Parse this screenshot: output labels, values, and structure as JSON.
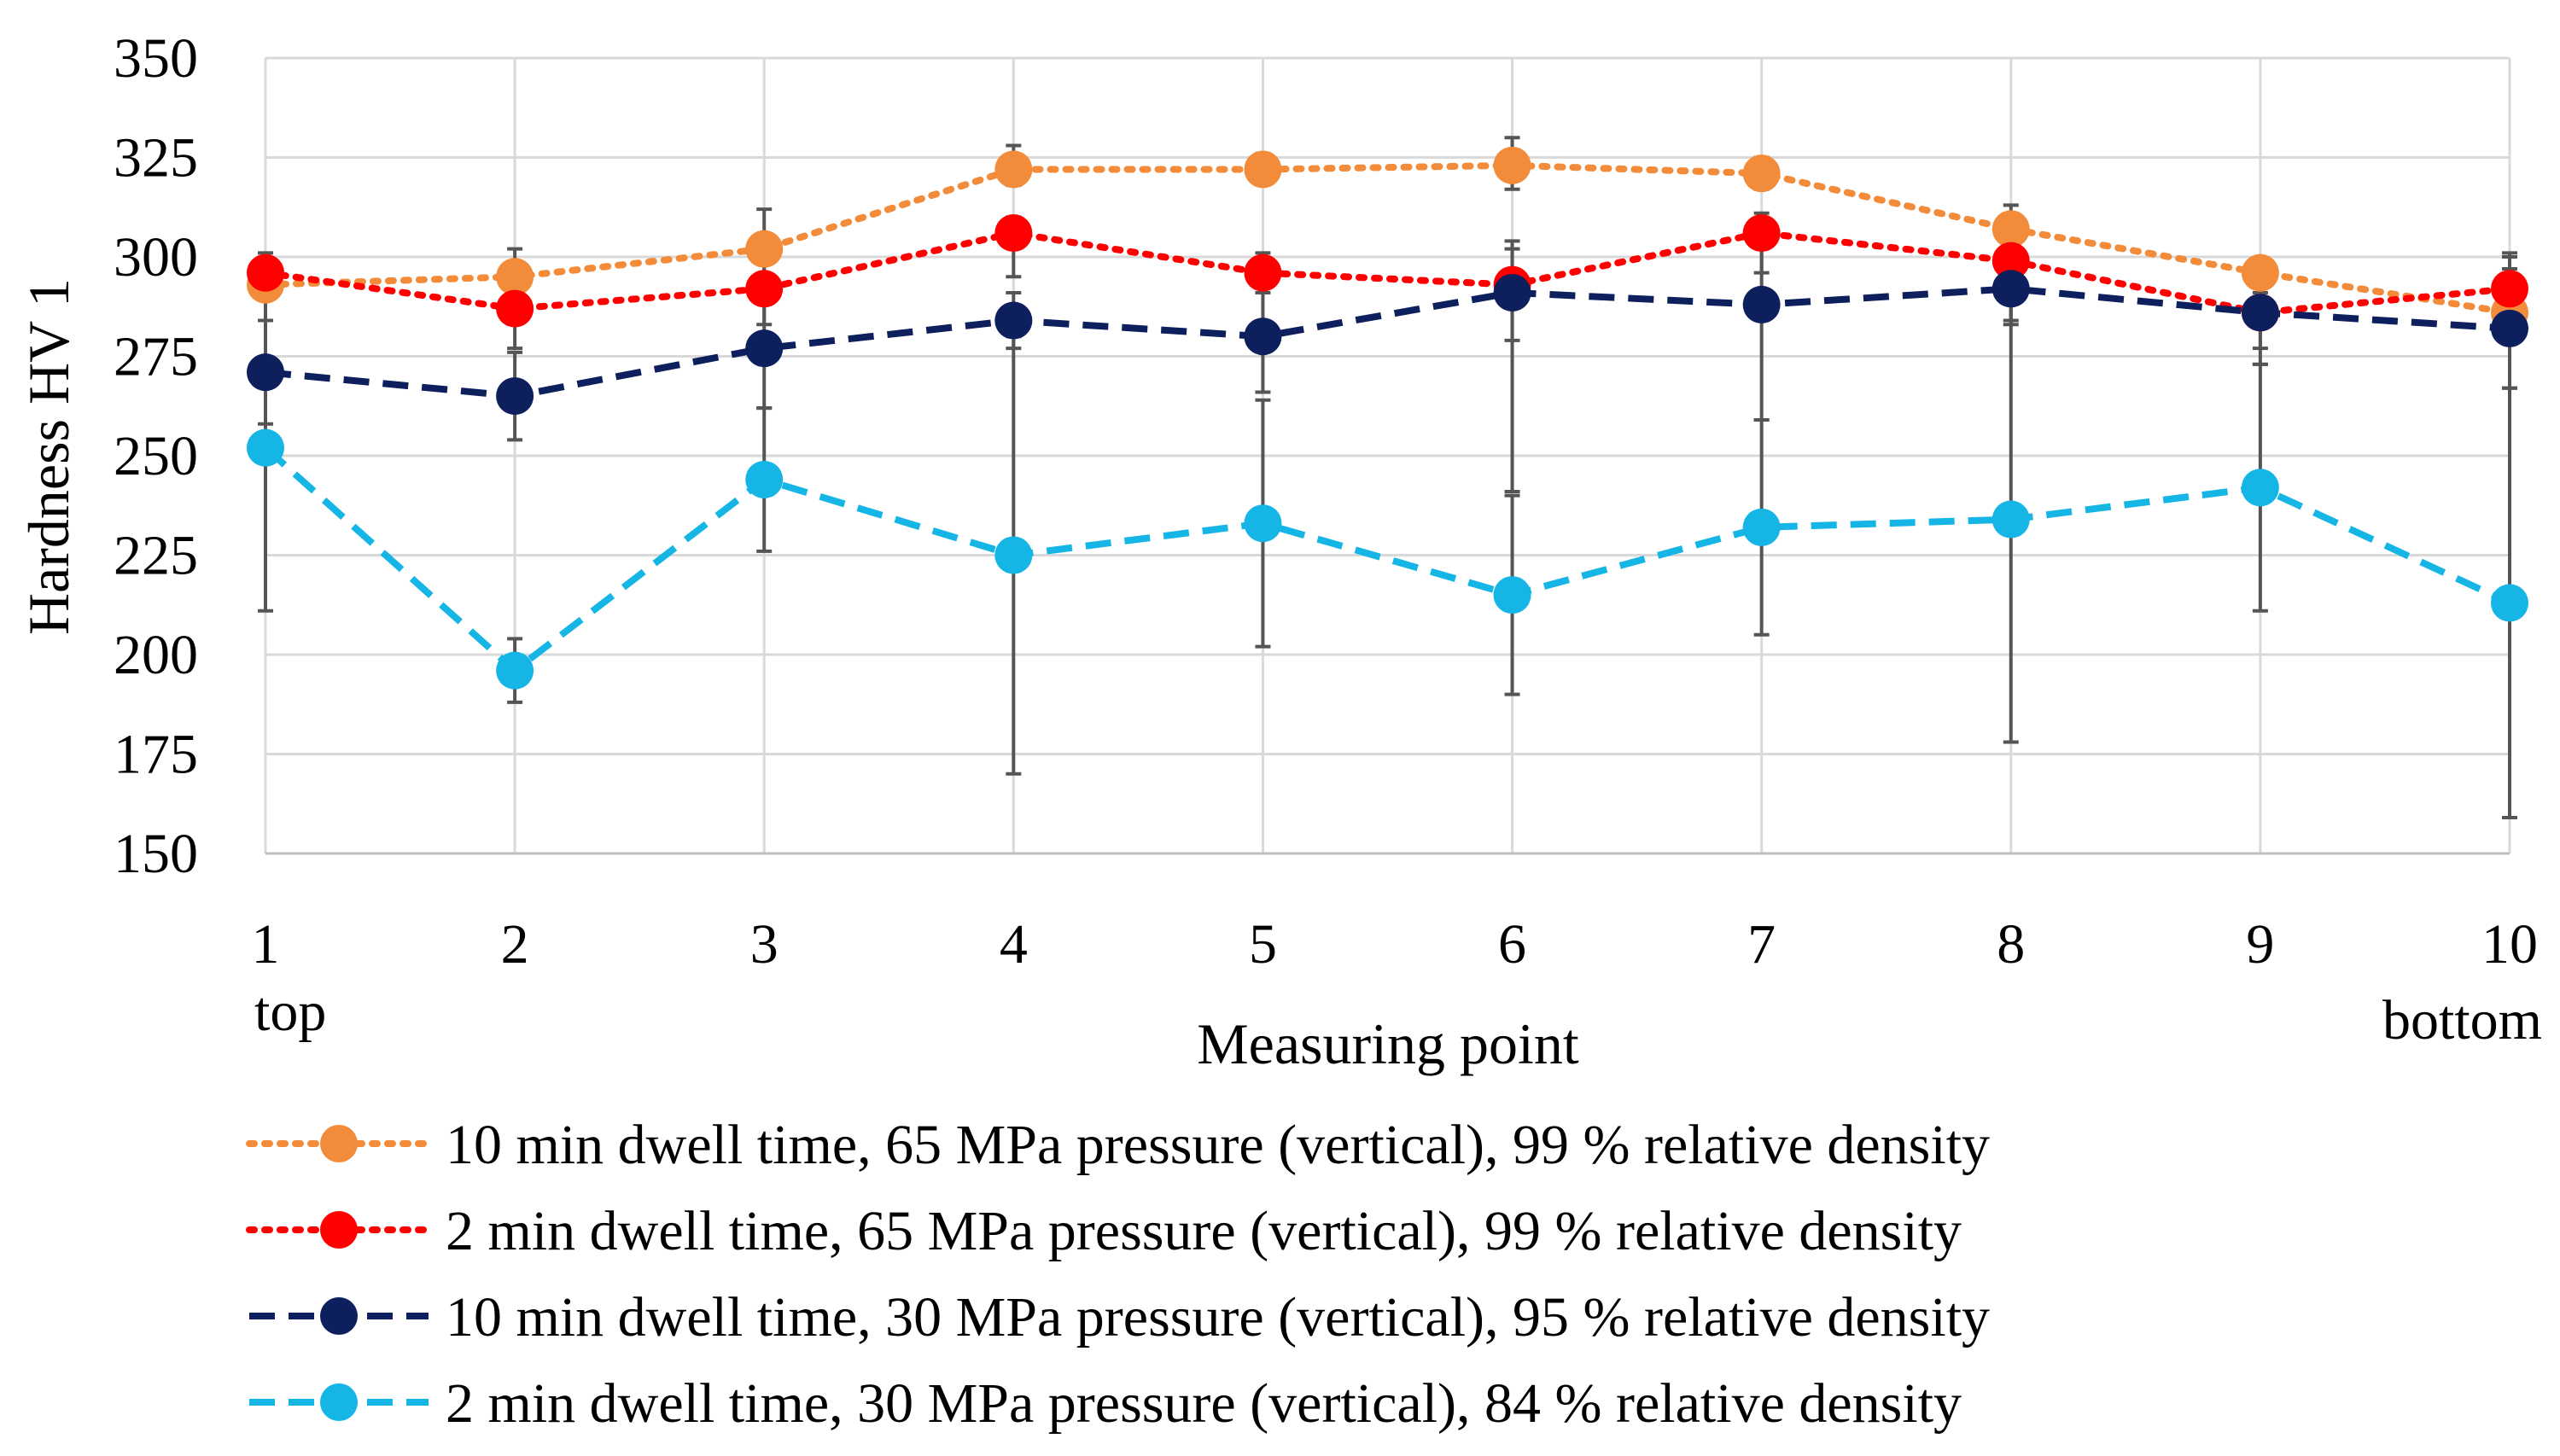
{
  "chart_data": {
    "type": "line",
    "title": "",
    "xlabel": "Measuring point",
    "ylabel": "Hardness HV 1",
    "x": [
      1,
      2,
      3,
      4,
      5,
      6,
      7,
      8,
      9,
      10
    ],
    "x_tick_labels": [
      "1",
      "2",
      "3",
      "4",
      "5",
      "6",
      "7",
      "8",
      "9",
      "10"
    ],
    "x_sublabels": {
      "first": "top",
      "last": "bottom"
    },
    "ylim": [
      150,
      350
    ],
    "y_ticks": [
      150,
      175,
      200,
      225,
      250,
      275,
      300,
      325,
      350
    ],
    "grid": true,
    "legend_position": "bottom",
    "series": [
      {
        "name": "10 min dwell time, 65 MPa pressure (vertical), 99 % relative density",
        "color": "#F28C3A",
        "line_style": "dotted",
        "values": [
          293,
          295,
          302,
          322,
          322,
          323,
          321,
          307,
          296,
          286
        ],
        "error_low": [
          292,
          294,
          293,
          318,
          319,
          317,
          317,
          302,
          287,
          280
        ],
        "error_high": [
          294,
          302,
          312,
          328,
          326,
          330,
          325,
          313,
          297,
          301
        ]
      },
      {
        "name": "2 min dwell time, 65 MPa pressure (vertical), 99 % relative density",
        "color": "#FF0000",
        "line_style": "dotted",
        "values": [
          296,
          287,
          292,
          306,
          296,
          293,
          306,
          299,
          286,
          292
        ],
        "error_low": [
          291,
          277,
          283,
          295,
          291,
          279,
          296,
          284,
          277,
          284
        ],
        "error_high": [
          301,
          297,
          301,
          310,
          301,
          304,
          311,
          310,
          295,
          300
        ]
      },
      {
        "name": "10 min dwell time, 30 MPa pressure (vertical), 95 % relative density",
        "color": "#0D1F5C",
        "line_style": "dashed",
        "values": [
          271,
          265,
          277,
          284,
          280,
          291,
          288,
          292,
          286,
          282
        ],
        "error_low": [
          258,
          254,
          262,
          277,
          266,
          241,
          259,
          283,
          273,
          267
        ],
        "error_high": [
          284,
          276,
          292,
          291,
          294,
          302,
          304,
          301,
          291,
          297
        ]
      },
      {
        "name": "2 min dwell time, 30 MPa pressure (vertical), 84 % relative density",
        "color": "#15B5E6",
        "line_style": "dashed",
        "values": [
          252,
          196,
          244,
          225,
          233,
          215,
          232,
          234,
          242,
          213
        ],
        "error_low": [
          211,
          188,
          226,
          170,
          202,
          190,
          205,
          178,
          211,
          159
        ],
        "error_high": [
          293,
          204,
          262,
          280,
          264,
          240,
          259,
          290,
          273,
          267
        ]
      }
    ]
  }
}
